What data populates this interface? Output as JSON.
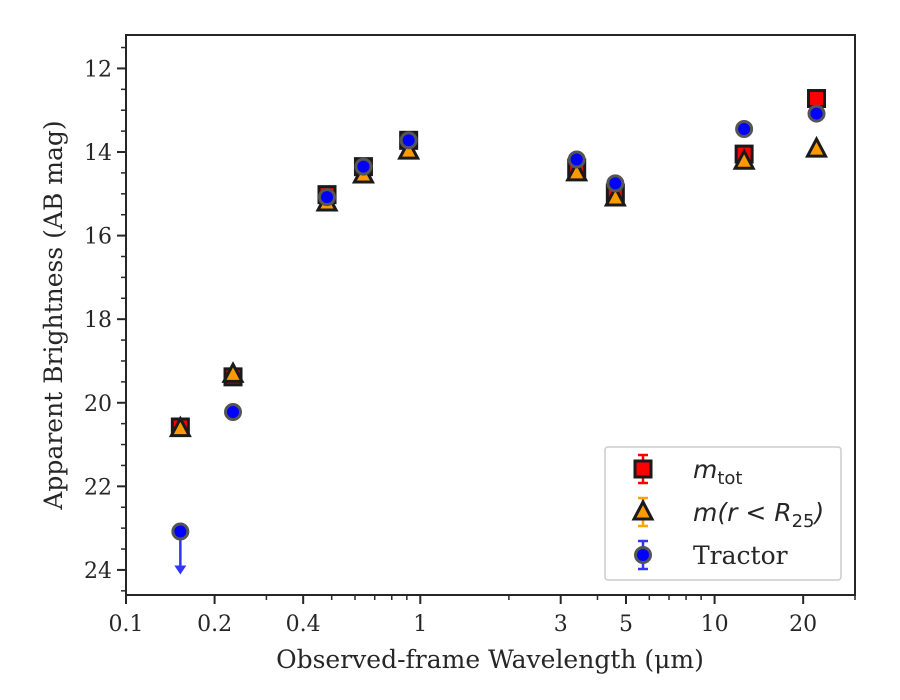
{
  "chart_data": {
    "type": "scatter",
    "xlabel": "Observed-frame Wavelength (μm)",
    "ylabel": "Apparent Brightness (AB mag)",
    "xscale": "log",
    "xlim": [
      0.1,
      30
    ],
    "ylim": [
      24.6,
      11.2
    ],
    "y_inverted": true,
    "x_ticks": [
      0.1,
      0.2,
      0.4,
      1,
      3,
      5,
      10,
      20
    ],
    "x_tick_labels": [
      "0.1",
      "0.2",
      "0.4",
      "1",
      "3",
      "5",
      "10",
      "20"
    ],
    "y_ticks": [
      12,
      14,
      16,
      18,
      20,
      22,
      24
    ],
    "y_tick_labels": [
      "12",
      "14",
      "16",
      "18",
      "20",
      "22",
      "24"
    ],
    "legend_placement": "lower-right",
    "series": [
      {
        "name": "m_tot",
        "marker": "square",
        "color": "#ff0000",
        "x": [
          0.153,
          0.231,
          0.482,
          0.641,
          0.913,
          3.4,
          4.6,
          12.6,
          22.2
        ],
        "y": [
          20.58,
          19.38,
          15.02,
          14.35,
          13.72,
          14.38,
          14.98,
          14.05,
          12.72
        ]
      },
      {
        "name": "m(r<R25)",
        "marker": "triangle",
        "color": "#ff9900",
        "x": [
          0.153,
          0.231,
          0.482,
          0.641,
          0.913,
          3.4,
          4.6,
          12.6,
          22.2
        ],
        "y": [
          20.62,
          19.32,
          15.22,
          14.55,
          13.98,
          14.5,
          15.1,
          14.22,
          13.93
        ]
      },
      {
        "name": "Tractor",
        "marker": "circle",
        "color": "#0000ff",
        "x": [
          0.153,
          0.231,
          0.482,
          0.641,
          0.913,
          3.4,
          4.6,
          12.6,
          22.2
        ],
        "y": [
          23.08,
          20.22,
          15.08,
          14.35,
          13.72,
          14.18,
          14.75,
          13.45,
          13.08
        ],
        "upper_limit": [
          true,
          false,
          false,
          false,
          false,
          false,
          false,
          false,
          false
        ]
      }
    ]
  },
  "legend": {
    "entries": [
      {
        "label_main": "m",
        "label_sub": "tot",
        "marker": "square",
        "face": "#ff0000",
        "errcolor": "#ff0000"
      },
      {
        "label_main": "m(r < R",
        "label_sub": "25",
        "label_tail": ")",
        "marker": "triangle",
        "face": "#ff9900",
        "errcolor": "#ffa500"
      },
      {
        "label_main": "Tractor",
        "marker": "circle",
        "face": "#0000ff",
        "errcolor": "#3333ff"
      }
    ]
  }
}
